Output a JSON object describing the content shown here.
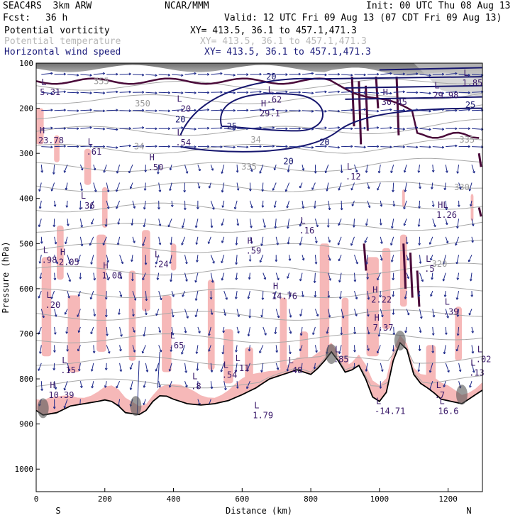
{
  "header": {
    "model": "SEAC4RS  3km ARW",
    "org": "NCAR/MMM",
    "init": "Init: 00 UTC Thu 08 Aug 13",
    "fcst_label": "Fcst:",
    "fcst_value": "36 h",
    "valid": "Valid: 12 UTC Fri 09 Aug 13 (07 CDT Fri 09 Aug 13)"
  },
  "legend": [
    {
      "name": "Potential vorticity",
      "xy": "XY= 413.5, 36.1 to 457.1,471.3",
      "color": "#000000"
    },
    {
      "name": "Potential temperature",
      "xy": "XY= 413.5, 36.1 to 457.1,471.3",
      "color": "#b8b8b8"
    },
    {
      "name": "Horizontal wind speed",
      "xy": "XY= 413.5, 36.1 to 457.1,471.3",
      "color": "#1a1a7a"
    }
  ],
  "chart_data": {
    "type": "cross-section",
    "xlabel": "Distance (km)",
    "ylabel": "Pressure (hPa)",
    "xlim": [
      0,
      1300
    ],
    "ylim": [
      1050,
      100
    ],
    "x_ticks": [
      "0",
      "200",
      "400",
      "600",
      "800",
      "1000",
      "1200"
    ],
    "y_ticks": [
      "100",
      "200",
      "300",
      "400",
      "500",
      "600",
      "700",
      "800",
      "900",
      "1000"
    ],
    "x_end_labels": {
      "left": "S",
      "right": "N"
    },
    "theta_contours": [
      {
        "label": "335",
        "p": 330,
        "x": 620
      },
      {
        "label": "330",
        "p": 375,
        "x": 1240
      },
      {
        "label": "320",
        "p": 545,
        "x": 1175
      },
      {
        "label": "350",
        "p": 190,
        "x": 310
      },
      {
        "label": "355",
        "p": 140,
        "x": 190
      },
      {
        "label": "34",
        "p": 285,
        "x": 300
      },
      {
        "label": "34",
        "p": 270,
        "x": 640
      },
      {
        "label": "335",
        "p": 270,
        "x": 1255
      }
    ],
    "wind_contours": [
      {
        "label": "20",
        "p": 130,
        "x": 685
      },
      {
        "label": "20",
        "p": 225,
        "x": 420
      },
      {
        "label": "25",
        "p": 240,
        "x": 570
      },
      {
        "label": "20",
        "p": 318,
        "x": 735
      },
      {
        "label": "25",
        "p": 193,
        "x": 1265
      },
      {
        "label": "20",
        "p": 275,
        "x": 840
      }
    ],
    "extrema": [
      {
        "kind": "L",
        "value": "5.31",
        "x": 15,
        "p": 158
      },
      {
        "kind": "H",
        "value": "23.78",
        "x": 10,
        "p": 265
      },
      {
        "kind": "L",
        "value": ".61",
        "x": 150,
        "p": 290
      },
      {
        "kind": "H",
        "value": ".50",
        "x": 330,
        "p": 325
      },
      {
        "kind": "L",
        "value": ".36",
        "x": 130,
        "p": 410
      },
      {
        "kind": "L",
        "value": ".98",
        "x": 20,
        "p": 530
      },
      {
        "kind": "H",
        "value": "2.05",
        "x": 70,
        "p": 535
      },
      {
        "kind": "H",
        "value": "1.08",
        "x": 195,
        "p": 565
      },
      {
        "kind": "L",
        "value": ".24",
        "x": 345,
        "p": 540
      },
      {
        "kind": "L",
        "value": ".20",
        "x": 30,
        "p": 630
      },
      {
        "kind": "H",
        "value": ".59",
        "x": 615,
        "p": 510
      },
      {
        "kind": "L",
        "value": ".16",
        "x": 770,
        "p": 465
      },
      {
        "kind": "H",
        "value": "14.76",
        "x": 690,
        "p": 610
      },
      {
        "kind": "H",
        "value": "29.1",
        "x": 655,
        "p": 205
      },
      {
        "kind": "L",
        "value": ".20",
        "x": 410,
        "p": 195
      },
      {
        "kind": "L",
        "value": ".54",
        "x": 410,
        "p": 270
      },
      {
        "kind": "L",
        "value": ".12",
        "x": 905,
        "p": 345
      },
      {
        "kind": "L",
        "value": ".62",
        "x": 675,
        "p": 175
      },
      {
        "kind": "H",
        "value": "30.45",
        "x": 1010,
        "p": 180
      },
      {
        "kind": "L",
        "value": "29.98",
        "x": 1160,
        "p": 165
      },
      {
        "kind": "L",
        "value": "1.85",
        "x": 1245,
        "p": 138
      },
      {
        "kind": "HL",
        "value": "1.26",
        "x": 1170,
        "p": 430
      },
      {
        "kind": "L",
        "value": ".5",
        "x": 1135,
        "p": 550
      },
      {
        "kind": "H",
        "value": "2.22",
        "x": 980,
        "p": 618
      },
      {
        "kind": "L",
        "value": ".39",
        "x": 1190,
        "p": 645
      },
      {
        "kind": "H",
        "value": "7.37",
        "x": 985,
        "p": 680
      },
      {
        "kind": "L",
        "value": ".65",
        "x": 390,
        "p": 720
      },
      {
        "kind": "L",
        "value": ".11",
        "x": 580,
        "p": 770
      },
      {
        "kind": "L",
        "value": ".48",
        "x": 735,
        "p": 775
      },
      {
        "kind": "L",
        "value": ".85",
        "x": 870,
        "p": 750
      },
      {
        "kind": "L",
        "value": ".15",
        "x": 75,
        "p": 775
      },
      {
        "kind": "L",
        "value": ".8",
        "x": 455,
        "p": 810
      },
      {
        "kind": "H",
        "value": "10.39",
        "x": 40,
        "p": 830
      },
      {
        "kind": "L",
        "value": "1.79",
        "x": 635,
        "p": 875
      },
      {
        "kind": "L",
        "value": "16.6",
        "x": 1175,
        "p": 865
      },
      {
        "kind": "L",
        "value": "-14.71",
        "x": 990,
        "p": 865
      },
      {
        "kind": "L",
        "value": ".13",
        "x": 1265,
        "p": 780
      },
      {
        "kind": "L",
        "value": ".02",
        "x": 1285,
        "p": 750
      },
      {
        "kind": "L",
        "value": ".54",
        "x": 545,
        "p": 785
      },
      {
        "kind": "L",
        "value": ".7",
        "x": 1165,
        "p": 830
      }
    ]
  }
}
